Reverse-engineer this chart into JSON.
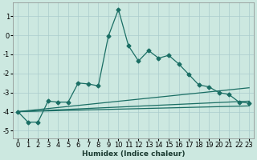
{
  "xlabel": "Humidex (Indice chaleur)",
  "xlim": [
    -0.5,
    23.5
  ],
  "ylim": [
    -5.4,
    1.7
  ],
  "yticks": [
    1,
    0,
    -1,
    -2,
    -3,
    -4,
    -5
  ],
  "xticks": [
    0,
    1,
    2,
    3,
    4,
    5,
    6,
    7,
    8,
    9,
    10,
    11,
    12,
    13,
    14,
    15,
    16,
    17,
    18,
    19,
    20,
    21,
    22,
    23
  ],
  "bg_color": "#cce8e0",
  "line_color": "#1a6e64",
  "grid_color": "#aacccc",
  "main_line_x": [
    0,
    1,
    2,
    3,
    4,
    5,
    6,
    7,
    8,
    9,
    10,
    11,
    12,
    13,
    14,
    15,
    16,
    17,
    18,
    19,
    20,
    21,
    22,
    23
  ],
  "main_line_y": [
    -4.0,
    -4.55,
    -4.55,
    -3.45,
    -3.5,
    -3.5,
    -2.5,
    -2.55,
    -2.65,
    -0.05,
    1.35,
    -0.55,
    -1.35,
    -0.8,
    -1.2,
    -1.05,
    -1.5,
    -2.05,
    -2.6,
    -2.7,
    -3.0,
    -3.1,
    -3.5,
    -3.55
  ],
  "smooth_lines": [
    {
      "x0": 0,
      "y0": -4.0,
      "x1": 23,
      "y1": -2.75
    },
    {
      "x0": 0,
      "y0": -4.0,
      "x1": 23,
      "y1": -3.45
    },
    {
      "x0": 0,
      "y0": -4.0,
      "x1": 23,
      "y1": -3.7
    }
  ],
  "marker": "D",
  "markersize": 2.5,
  "linewidth": 0.9,
  "xlabel_fontsize": 6.5,
  "tick_fontsize": 6.0
}
